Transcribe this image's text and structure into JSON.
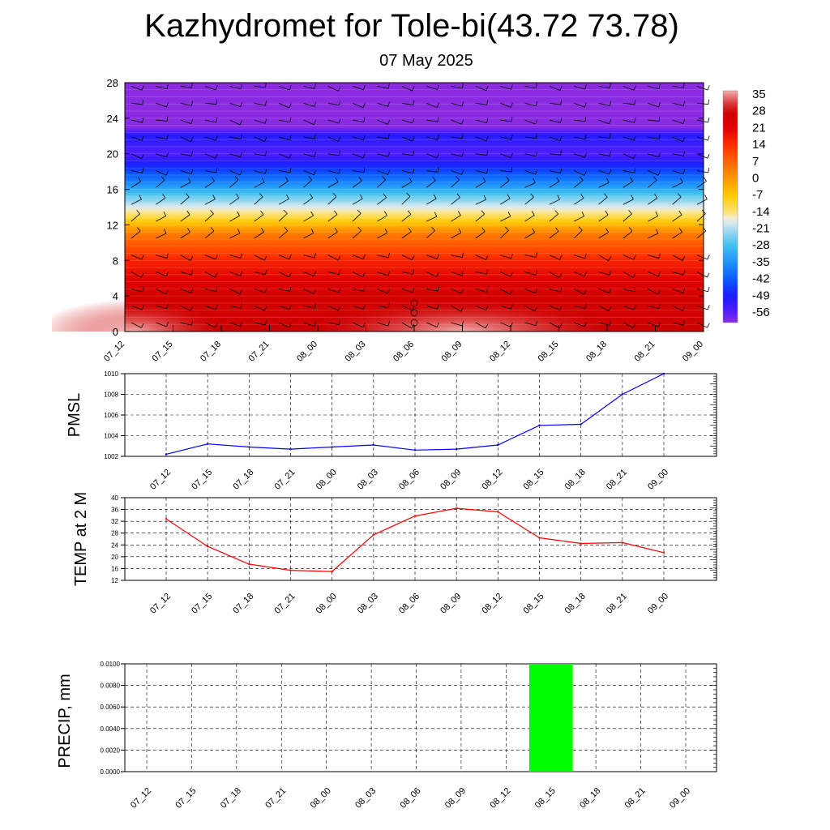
{
  "title": "Kazhydromet for Tole-bi(43.72 73.78)",
  "subtitle": "07 May 2025",
  "chart_data": [
    {
      "type": "heatmap",
      "name": "Temperature cross-section with wind barbs",
      "x_categories": [
        "07_12",
        "07_15",
        "07_18",
        "07_21",
        "08_00",
        "08_03",
        "08_06",
        "08_09",
        "08_12",
        "08_15",
        "08_18",
        "08_21",
        "09_00"
      ],
      "y_ticks": [
        0,
        4,
        8,
        12,
        16,
        20,
        24,
        28
      ],
      "ylim": [
        0,
        28
      ],
      "colorbar_labels": [
        "35",
        "28",
        "21",
        "14",
        "7",
        "0",
        "-7",
        "-14",
        "-21",
        "-28",
        "-35",
        "-42",
        "-49",
        "-56"
      ],
      "color_stops": [
        {
          "value": -60,
          "color": "#8a2be2"
        },
        {
          "value": -56,
          "color": "#5a1fff"
        },
        {
          "value": -49,
          "color": "#1a1aff"
        },
        {
          "value": -42,
          "color": "#0a5cff"
        },
        {
          "value": -35,
          "color": "#1e90ff"
        },
        {
          "value": -28,
          "color": "#3cc0f0"
        },
        {
          "value": -21,
          "color": "#a8dcf0"
        },
        {
          "value": -17,
          "color": "#f0f0f0"
        },
        {
          "value": -14,
          "color": "#ffe27a"
        },
        {
          "value": -7,
          "color": "#ffcc00"
        },
        {
          "value": 0,
          "color": "#ff9900"
        },
        {
          "value": 7,
          "color": "#ff6600"
        },
        {
          "value": 14,
          "color": "#ff3300"
        },
        {
          "value": 21,
          "color": "#e00000"
        },
        {
          "value": 28,
          "color": "#cc0000"
        },
        {
          "value": 33,
          "color": "#e05050"
        },
        {
          "value": 37,
          "color": "#f4b0b0"
        }
      ],
      "temperature_profile": [
        {
          "height": 0,
          "value": 28
        },
        {
          "height": 4,
          "value": 25
        },
        {
          "height": 8,
          "value": 16
        },
        {
          "height": 11,
          "value": 4
        },
        {
          "height": 13,
          "value": -12
        },
        {
          "height": 15,
          "value": -24
        },
        {
          "height": 17,
          "value": -38
        },
        {
          "height": 19,
          "value": -50
        },
        {
          "height": 20,
          "value": -55
        },
        {
          "height": 21,
          "value": -53
        },
        {
          "height": 22,
          "value": -50
        },
        {
          "height": 23,
          "value": -60
        },
        {
          "height": 28,
          "value": -60
        }
      ],
      "warm_spot_centers": [
        "07_12",
        "08_09"
      ]
    },
    {
      "type": "line",
      "ylabel": "PMSL",
      "x": [
        "07_12",
        "07_15",
        "07_18",
        "07_21",
        "08_00",
        "08_03",
        "08_06",
        "08_09",
        "08_12",
        "08_15",
        "08_18",
        "08_21",
        "09_00"
      ],
      "values": [
        1002.2,
        1003.2,
        1002.9,
        1002.7,
        1002.9,
        1003.1,
        1002.6,
        1002.7,
        1003.1,
        1005.0,
        1005.1,
        1008.0,
        1010.0
      ],
      "yticks": [
        1002,
        1004,
        1006,
        1008,
        1010
      ],
      "ylim": [
        1002,
        1010
      ],
      "color": "#0000ff",
      "grid": true
    },
    {
      "type": "line",
      "ylabel": "TEMP at 2 M",
      "x": [
        "07_12",
        "07_15",
        "07_18",
        "07_21",
        "08_00",
        "08_03",
        "08_06",
        "08_09",
        "08_12",
        "08_15",
        "08_18",
        "08_21",
        "09_00"
      ],
      "values": [
        32.8,
        23.5,
        17.5,
        15.4,
        15.0,
        27.4,
        33.8,
        36.4,
        35.2,
        26.4,
        24.5,
        24.8,
        21.4
      ],
      "yticks": [
        12,
        16,
        20,
        24,
        28,
        32,
        36,
        40
      ],
      "ylim": [
        12,
        40
      ],
      "color": "#ff0000",
      "grid": true
    },
    {
      "type": "bar",
      "ylabel": "PRECIP, mm",
      "categories": [
        "07_12",
        "07_15",
        "07_18",
        "07_21",
        "08_00",
        "08_03",
        "08_06",
        "08_09",
        "08_12",
        "08_15",
        "08_18",
        "08_21",
        "09_00"
      ],
      "values": [
        0,
        0,
        0,
        0,
        0,
        0,
        0,
        0,
        0,
        0.01,
        0,
        0,
        0
      ],
      "yticks": [
        "0.0000",
        "0.0020",
        "0.0040",
        "0.0060",
        "0.0080",
        "0.0100"
      ],
      "ylim": [
        0,
        0.01
      ],
      "bar_color": "#00ff00",
      "grid": true
    }
  ]
}
